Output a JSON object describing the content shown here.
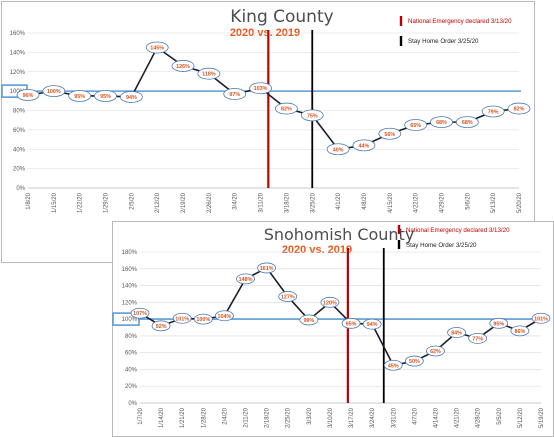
{
  "colors": {
    "emergency": "#c00000",
    "stay_home": "#000000",
    "baseline": "#5b9bd5",
    "line": "#1b1f2c",
    "label": "#d9531e",
    "subtitle": "#e8581b"
  },
  "chart_data": [
    {
      "type": "line",
      "title": "King County",
      "subtitle": "2020 vs. 2019",
      "categories": [
        "1/8/20",
        "1/15/20",
        "1/22/20",
        "1/29/20",
        "2/5/20",
        "2/12/20",
        "2/19/20",
        "2/26/20",
        "3/4/20",
        "3/11/20",
        "3/18/20",
        "3/25/20",
        "4/1/20",
        "4/8/20",
        "4/15/20",
        "4/22/20",
        "4/29/20",
        "5/6/20",
        "5/13/20",
        "5/20/20"
      ],
      "values": [
        96,
        100,
        95,
        95,
        94,
        145,
        126,
        118,
        97,
        103,
        82,
        75,
        40,
        44,
        56,
        65,
        68,
        68,
        79,
        82
      ],
      "data_labels": [
        "96%",
        "100%",
        "95%",
        "95%",
        "94%",
        "145%",
        "126%",
        "118%",
        "97%",
        "103%",
        "82%",
        "75%",
        "40%",
        "44%",
        "56%",
        "65%",
        "68%",
        "68%",
        "79%",
        "82%"
      ],
      "y_ticks": [
        "0%",
        "20%",
        "40%",
        "60%",
        "80%",
        "100%",
        "120%",
        "140%",
        "160%"
      ],
      "ylim": [
        0,
        160
      ],
      "reference_line": 100,
      "events": [
        {
          "label": "National Emergency declared 3/13/20",
          "color": "#c00000"
        },
        {
          "label": "Stay Home Order 3/25/20",
          "color": "#000000"
        }
      ],
      "grid": true,
      "legend_position": "top-right"
    },
    {
      "type": "line",
      "title": "Snohomish County",
      "subtitle": "2020 vs. 2019",
      "categories": [
        "1/7/20",
        "1/14/20",
        "1/21/20",
        "1/28/20",
        "2/4/20",
        "2/11/20",
        "2/18/20",
        "2/25/20",
        "3/3/20",
        "3/10/20",
        "3/17/20",
        "3/24/20",
        "3/31/20",
        "4/7/20",
        "4/14/20",
        "4/21/20",
        "4/28/20",
        "5/5/20",
        "5/12/20",
        "5/19/20"
      ],
      "values": [
        107,
        92,
        101,
        100,
        104,
        148,
        161,
        127,
        99,
        120,
        95,
        94,
        45,
        50,
        62,
        84,
        77,
        95,
        86,
        101
      ],
      "data_labels": [
        "107%",
        "92%",
        "101%",
        "100%",
        "104%",
        "148%",
        "161%",
        "127%",
        "99%",
        "120%",
        "95%",
        "94%",
        "45%",
        "50%",
        "62%",
        "84%",
        "77%",
        "95%",
        "86%",
        "101%"
      ],
      "y_ticks": [
        "0%",
        "20%",
        "40%",
        "60%",
        "80%",
        "100%",
        "120%",
        "140%",
        "160%",
        "180%"
      ],
      "ylim": [
        0,
        180
      ],
      "reference_line": 100,
      "events": [
        {
          "label": "National Emergency declared 3/13/20",
          "color": "#c00000"
        },
        {
          "label": "Stay Home Order 3/25/20",
          "color": "#000000"
        }
      ],
      "grid": true,
      "legend_position": "top-right"
    }
  ]
}
